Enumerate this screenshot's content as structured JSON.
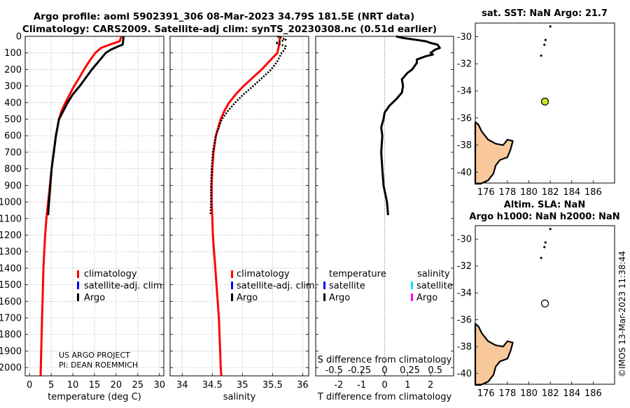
{
  "header": {
    "title_line1": "Argo profile: aoml 5902391_306 08-Mar-2023 34.79S 181.5E (NRT data)",
    "title_line2": "Climatology: CARS2009. Satellite-adj clim: synTS_20230308.nc (0.51d earlier)"
  },
  "depth_ticks": [
    "0",
    "100",
    "200",
    "300",
    "400",
    "500",
    "600",
    "700",
    "800",
    "900",
    "1000",
    "1100",
    "1200",
    "1300",
    "1400",
    "1500",
    "1600",
    "1700",
    "1800",
    "1900",
    "2000"
  ],
  "colors": {
    "climatology": "#ff0000",
    "satellite": "#0000ff",
    "argo": "#000000",
    "sat_salinity": "#00e5ff",
    "argo_salinity": "#ff00ff",
    "land": "#f8c89a",
    "sst_marker": "#c8e61e"
  },
  "credits": {
    "line1": "US ARGO PROJECT",
    "line2": "PI: DEAN ROEMMICH"
  },
  "legend": {
    "climatology": "climatology",
    "satellite": "satellite-adj. clim.",
    "argo": "Argo"
  },
  "legend_diff": {
    "temperature": "temperature",
    "salinity": "salinity",
    "satellite": "satellite",
    "argo": "Argo"
  },
  "watermark": "©IMOS 13-Mar-2023 11:38:44",
  "chart_data": [
    {
      "type": "line",
      "title": "",
      "xlabel": "temperature (deg C)",
      "ylabel": "",
      "xlim": [
        -1,
        31
      ],
      "ylim": [
        2050,
        0
      ],
      "xticks": [
        0,
        5,
        10,
        15,
        20,
        25,
        30
      ],
      "series": [
        {
          "name": "climatology",
          "depth": [
            0,
            30,
            50,
            70,
            100,
            150,
            200,
            250,
            300,
            350,
            400,
            450,
            500,
            600,
            700,
            800,
            900,
            1000,
            1100,
            1200,
            1300,
            1400,
            1500,
            1600,
            1700,
            1800,
            1900,
            2000,
            2050
          ],
          "values": [
            21.2,
            20.8,
            18.5,
            16.5,
            15.2,
            13.8,
            12.6,
            11.5,
            10.3,
            9.3,
            8.3,
            7.4,
            6.8,
            6.1,
            5.6,
            5.1,
            4.7,
            4.3,
            3.9,
            3.6,
            3.4,
            3.2,
            3.1,
            3.0,
            2.9,
            2.8,
            2.7,
            2.6,
            2.55
          ]
        },
        {
          "name": "Argo",
          "depth": [
            0,
            30,
            50,
            60,
            80,
            100,
            150,
            200,
            250,
            300,
            350,
            400,
            450,
            500,
            600,
            700,
            800,
            900,
            1000,
            1080
          ],
          "values": [
            21.7,
            21.6,
            21.5,
            20.5,
            18.8,
            17.6,
            16.0,
            14.4,
            13.0,
            11.6,
            10.0,
            8.8,
            7.8,
            6.8,
            6.1,
            5.6,
            5.1,
            4.8,
            4.5,
            4.3
          ]
        }
      ]
    },
    {
      "type": "line",
      "xlabel": "salinity",
      "xlim": [
        33.8,
        36.1
      ],
      "ylim": [
        2050,
        0
      ],
      "xticks": [
        34,
        34.5,
        35,
        35.5,
        36
      ],
      "xtick_labels": [
        "34",
        "34.5",
        "35",
        "35.5",
        "36"
      ],
      "series": [
        {
          "name": "climatology",
          "depth": [
            0,
            50,
            100,
            150,
            200,
            250,
            300,
            350,
            400,
            450,
            500,
            600,
            700,
            800,
            900,
            1000,
            1100,
            1200,
            1300,
            1400,
            1500,
            1600,
            1700,
            1800,
            1900,
            2000,
            2050
          ],
          "values": [
            35.62,
            35.61,
            35.58,
            35.45,
            35.32,
            35.17,
            35.02,
            34.89,
            34.78,
            34.7,
            34.64,
            34.56,
            34.52,
            34.5,
            34.49,
            34.49,
            34.5,
            34.51,
            34.53,
            34.55,
            34.57,
            34.59,
            34.61,
            34.62,
            34.63,
            34.64,
            34.65
          ]
        },
        {
          "name": "Argo",
          "depth": [
            0,
            20,
            40,
            60,
            80,
            100,
            150,
            200,
            250,
            300,
            350,
            400,
            450,
            500,
            600,
            700,
            800,
            900,
            1000,
            1080
          ],
          "values": [
            35.58,
            35.72,
            35.55,
            35.72,
            35.7,
            35.65,
            35.58,
            35.48,
            35.33,
            35.18,
            35.02,
            34.88,
            34.76,
            34.66,
            34.56,
            34.51,
            34.49,
            34.48,
            34.48,
            34.47
          ]
        }
      ]
    },
    {
      "type": "line",
      "xlabel": "T difference from climatology",
      "xlabel_top": "S difference from climatology",
      "xlim": [
        -3.0,
        3.0
      ],
      "ylim": [
        2050,
        0
      ],
      "xticks": [
        -2,
        -1,
        0,
        1,
        2
      ],
      "xtick_labels": [
        "-2",
        "-1",
        "0",
        "1",
        "2"
      ],
      "sticks": [
        -0.5,
        -0.25,
        0,
        0.25,
        0.5
      ],
      "stick_labels": [
        "-0.5",
        "-0.25",
        "0",
        "0.25",
        "0.5"
      ],
      "series": [
        {
          "name": "Argo temperature",
          "depth": [
            0,
            10,
            20,
            30,
            40,
            50,
            60,
            70,
            80,
            90,
            100,
            110,
            120,
            130,
            140,
            160,
            180,
            200,
            220,
            260,
            300,
            340,
            380,
            420,
            460,
            500,
            550,
            600,
            700,
            800,
            900,
            1000,
            1080
          ],
          "values": [
            0.5,
            0.8,
            1.3,
            1.8,
            2.0,
            2.3,
            2.35,
            2.4,
            2.2,
            2.1,
            2.0,
            2.1,
            1.8,
            1.6,
            1.4,
            1.4,
            1.3,
            1.2,
            1.0,
            0.75,
            0.8,
            0.75,
            0.5,
            0.2,
            0.0,
            -0.05,
            -0.15,
            -0.1,
            -0.15,
            -0.1,
            -0.05,
            0.1,
            0.15
          ]
        }
      ]
    },
    {
      "type": "scatter",
      "title": "sat. SST: NaN Argo: 21.7",
      "xlim": [
        175,
        188
      ],
      "ylim": [
        -40.8,
        -29
      ],
      "xticks": [
        176,
        178,
        180,
        182,
        184,
        186
      ],
      "yticks": [
        -30,
        -32,
        -34,
        -36,
        -38,
        -40
      ],
      "points": [
        {
          "label": "float",
          "x": 181.5,
          "y": -34.79
        }
      ]
    },
    {
      "type": "scatter",
      "title_line1": "Altim. SLA: NaN",
      "title_line2": "Argo h1000: NaN h2000: NaN",
      "xlim": [
        175,
        188
      ],
      "ylim": [
        -40.8,
        -29
      ],
      "xticks": [
        176,
        178,
        180,
        182,
        184,
        186
      ],
      "yticks": [
        -30,
        -32,
        -34,
        -36,
        -38,
        -40
      ],
      "points": [
        {
          "label": "float",
          "x": 181.5,
          "y": -34.79
        }
      ]
    }
  ]
}
